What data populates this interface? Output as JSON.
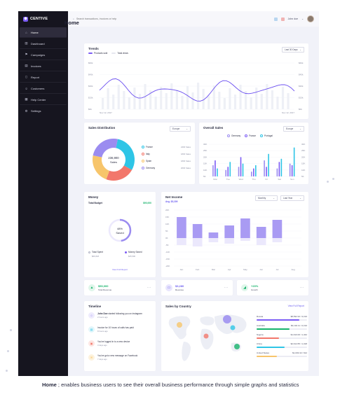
{
  "app": {
    "brand": "CENTIVE"
  },
  "sidebar": {
    "items": [
      {
        "label": "Home",
        "icon": "home-icon"
      },
      {
        "label": "Dashboard",
        "icon": "chart-icon"
      },
      {
        "label": "Campaigns",
        "icon": "flag-icon"
      },
      {
        "label": "Invoices",
        "icon": "invoice-icon"
      },
      {
        "label": "Report",
        "icon": "report-icon"
      },
      {
        "label": "Customers",
        "icon": "user-icon"
      },
      {
        "label": "Help Center",
        "icon": "help-icon"
      },
      {
        "label": "Settings",
        "icon": "gear-icon"
      }
    ]
  },
  "topbar": {
    "search_placeholder": "Search transactions, invoices or help",
    "user_name": "John doe"
  },
  "page": {
    "title": "Home"
  },
  "trends": {
    "title": "Trends",
    "select": "Last 30 Days",
    "legend": [
      "Products sold",
      "Total views"
    ],
    "y_labels": [
      "$60k",
      "$45k",
      "$30k",
      "$15k",
      "$0k"
    ],
    "x_start": "Nov 12, 2017",
    "x_end": "Nov 12, 2017"
  },
  "sales_distribution": {
    "title": "Sales Distribution",
    "select": "Europe",
    "center_value": "236,900",
    "center_label": "Sales",
    "items": [
      {
        "name": "France",
        "value": "2400 Sales",
        "color": "#2ec5e6"
      },
      {
        "name": "Italy",
        "value": "1800 Sales",
        "color": "#f2776b"
      },
      {
        "name": "Spain",
        "value": "1800 Sales",
        "color": "#f7c56b"
      },
      {
        "name": "Germany",
        "value": "2000 Sales",
        "color": "#9b8cf0"
      }
    ]
  },
  "overall_sales": {
    "title": "Overall Sales",
    "select": "Europe",
    "legend": [
      "Germany",
      "France",
      "Portugal"
    ],
    "y_labels": [
      "30K",
      "25K",
      "20K",
      "15K",
      "10K",
      "5K"
    ],
    "months": [
      "Mon",
      "Tue",
      "Wed",
      "Thu",
      "Fri",
      "Sat",
      "Sun"
    ]
  },
  "money": {
    "title": "Money",
    "budget_label": "Total Budget",
    "budget_value": "$90,000",
    "percent": "48%",
    "percent_label": "Saved",
    "spent_label": "Total Spent",
    "spent_value": "$66,618",
    "saved_label": "Money Saved",
    "saved_value": "$45,500",
    "link": "View Full Report"
  },
  "net_income": {
    "title": "Net Income",
    "subtitle": "Avg. $5,309",
    "select1": "Monthly",
    "select2": "Last Year",
    "y_labels": [
      "20K",
      "15K",
      "10K",
      "5K",
      "0K",
      "-5K",
      "-10K",
      "-15K",
      "-20K"
    ],
    "months": [
      "Jan",
      "Feb",
      "Mar",
      "Apr",
      "May",
      "Jun",
      "Jul",
      "Aug"
    ]
  },
  "stats": [
    {
      "value": "$50,000",
      "label": "Total Revenue",
      "color": "#16b36b",
      "bg": "#dff6ea",
      "icon": "money-icon"
    },
    {
      "value": "$3,280",
      "label": "Revenue",
      "color": "#6a5cf0",
      "bg": "#e8e5fd",
      "icon": "card-icon"
    },
    {
      "value": "+23%",
      "label": "Growth",
      "color": "#16b36b",
      "bg": "#dff6ea",
      "icon": "growth-icon"
    }
  ],
  "timeline": {
    "title": "Timeline",
    "items": [
      {
        "text_bold": "John Doe",
        "text": " started following you on instagram",
        "time": "2 hours ago",
        "color": "#9b8cf0",
        "bg": "#eeebfd"
      },
      {
        "text_bold": "",
        "text": "Invoice for 10 hours of calls has paid",
        "time": "8 hours ago",
        "color": "#2ec5e6",
        "bg": "#e2f6fb"
      },
      {
        "text_bold": "",
        "text": "You've logged in to a new device",
        "time": "3 days ago",
        "color": "#f2776b",
        "bg": "#fde6e3"
      },
      {
        "text_bold": "",
        "text": "You've got a new message on Facebook",
        "time": "7 days ago",
        "color": "#f7c56b",
        "bg": "#fdf2dc"
      }
    ]
  },
  "sales_by_country": {
    "title": "Sales by Country",
    "link": "View Full Report",
    "rows": [
      {
        "name": "Russia",
        "value": "$8,592.94 / 3,194",
        "color": "#7c5cf5",
        "fill": 0.85
      },
      {
        "name": "Australia",
        "value": "$3,192.11 / 2,194",
        "color": "#16b36b",
        "fill": 0.65
      },
      {
        "name": "Nigeria",
        "value": "$1,610.00 / 1,342",
        "color": "#f2776b",
        "fill": 0.45
      },
      {
        "name": "China",
        "value": "$2,614.55 / 1,018",
        "color": "#2ec5e6",
        "fill": 0.55
      },
      {
        "name": "United States",
        "value": "$1,003.32 / 912",
        "color": "#f7c56b",
        "fill": 0.4
      }
    ]
  },
  "caption": {
    "bold": "Home",
    "text": " ; enables business users to see their overall business performance through simple graphs and statistics"
  }
}
